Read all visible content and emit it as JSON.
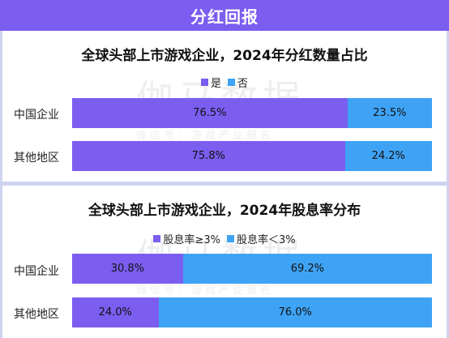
{
  "banner": {
    "title": "分红回报"
  },
  "watermark": {
    "main": "伽马数据",
    "sub": "微信号：游戏产业报告"
  },
  "colors": {
    "purple": "#7b5df0",
    "blue": "#3fa3f5"
  },
  "chart_data": [
    {
      "type": "bar",
      "stacked": true,
      "orientation": "horizontal",
      "title": "全球头部上市游戏企业，2024年分红数量占比",
      "categories": [
        "中国企业",
        "其他地区"
      ],
      "series": [
        {
          "name": "是",
          "color": "#7b5df0",
          "values": [
            76.5,
            75.8
          ],
          "labels": [
            "76.5%",
            "75.8%"
          ]
        },
        {
          "name": "否",
          "color": "#3fa3f5",
          "values": [
            23.5,
            24.2
          ],
          "labels": [
            "23.5%",
            "24.2%"
          ]
        }
      ],
      "legend": "top-center"
    },
    {
      "type": "bar",
      "stacked": true,
      "orientation": "horizontal",
      "title": "全球头部上市游戏企业，2024年股息率分布",
      "categories": [
        "中国企业",
        "其他地区"
      ],
      "series": [
        {
          "name": "股息率≥3%",
          "color": "#7b5df0",
          "values": [
            30.8,
            24.0
          ],
          "labels": [
            "30.8%",
            "24.0%"
          ]
        },
        {
          "name": "股息率＜3%",
          "color": "#3fa3f5",
          "values": [
            69.2,
            76.0
          ],
          "labels": [
            "69.2%",
            "76.0%"
          ]
        }
      ],
      "legend": "top-center"
    }
  ]
}
